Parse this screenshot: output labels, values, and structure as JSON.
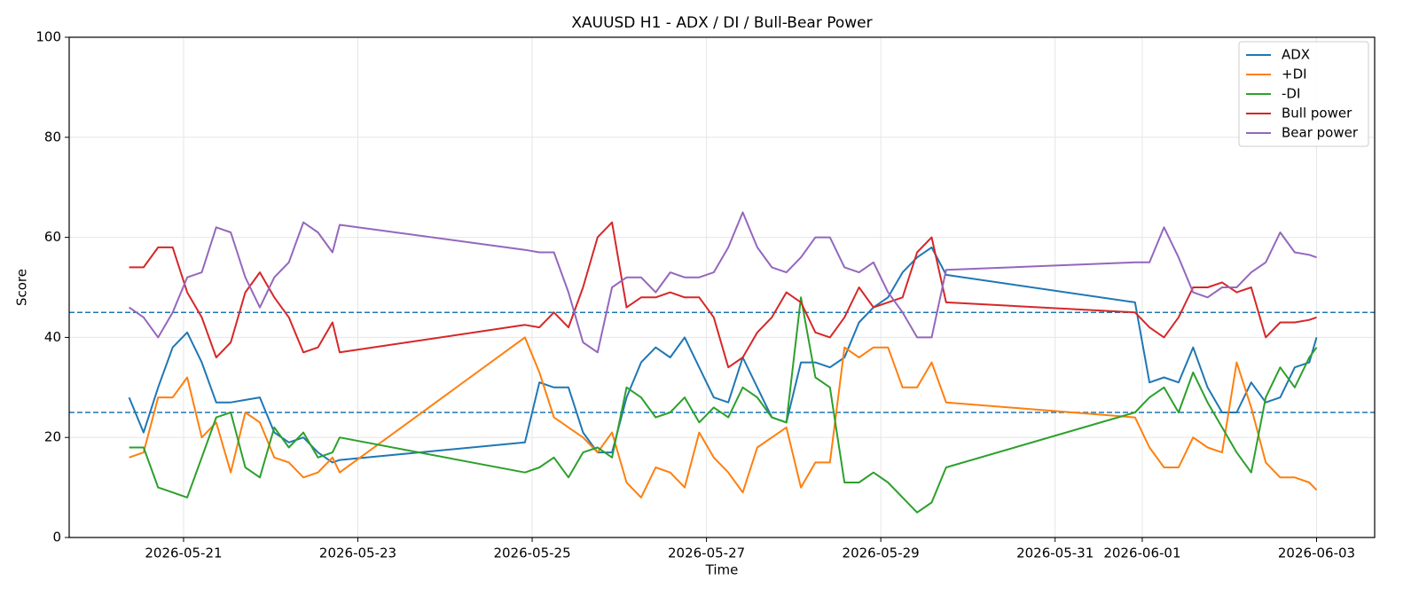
{
  "chart_data": {
    "type": "line",
    "title": "XAUUSD H1 - ADX / DI / Bull-Bear Power",
    "x_label": "Time",
    "y_label": "Score",
    "x": [
      "2026-05-20 09:00",
      "2026-05-20 13:00",
      "2026-05-20 17:00",
      "2026-05-20 21:00",
      "2026-05-21 01:00",
      "2026-05-21 05:00",
      "2026-05-21 09:00",
      "2026-05-21 13:00",
      "2026-05-21 17:00",
      "2026-05-21 21:00",
      "2026-05-22 01:00",
      "2026-05-22 05:00",
      "2026-05-22 09:00",
      "2026-05-22 13:00",
      "2026-05-22 17:00",
      "2026-05-22 19:00",
      "2026-05-24 22:00",
      "2026-05-25 02:00",
      "2026-05-25 06:00",
      "2026-05-25 10:00",
      "2026-05-25 14:00",
      "2026-05-25 18:00",
      "2026-05-25 22:00",
      "2026-05-26 02:00",
      "2026-05-26 06:00",
      "2026-05-26 10:00",
      "2026-05-26 14:00",
      "2026-05-26 18:00",
      "2026-05-26 22:00",
      "2026-05-27 02:00",
      "2026-05-27 06:00",
      "2026-05-27 10:00",
      "2026-05-27 14:00",
      "2026-05-27 18:00",
      "2026-05-27 22:00",
      "2026-05-28 02:00",
      "2026-05-28 06:00",
      "2026-05-28 10:00",
      "2026-05-28 14:00",
      "2026-05-28 18:00",
      "2026-05-28 22:00",
      "2026-05-29 02:00",
      "2026-05-29 06:00",
      "2026-05-29 10:00",
      "2026-05-29 14:00",
      "2026-05-29 18:00",
      "2026-05-31 22:00",
      "2026-06-01 02:00",
      "2026-06-01 06:00",
      "2026-06-01 10:00",
      "2026-06-01 14:00",
      "2026-06-01 18:00",
      "2026-06-01 22:00",
      "2026-06-02 02:00",
      "2026-06-02 06:00",
      "2026-06-02 10:00",
      "2026-06-02 14:00",
      "2026-06-02 18:00",
      "2026-06-02 22:00",
      "2026-06-03 00:00"
    ],
    "series": [
      {
        "name": "ADX",
        "color": "#1f77b4",
        "values": [
          28,
          21,
          30,
          38,
          41,
          35,
          27,
          27,
          27.5,
          28,
          21,
          19,
          20,
          17,
          15,
          15.5,
          19,
          31,
          30,
          30,
          21,
          17,
          17,
          28,
          35,
          38,
          36,
          40,
          34,
          28,
          27,
          36,
          30,
          24,
          23,
          35,
          35,
          34,
          36,
          43,
          46,
          48,
          53,
          56,
          58,
          52.5,
          47,
          31,
          32,
          31,
          38,
          30,
          25,
          25,
          31,
          27,
          28,
          34,
          35,
          40
        ]
      },
      {
        "name": "+DI",
        "color": "#ff7f0e",
        "values": [
          16,
          17,
          28,
          28,
          32,
          20,
          23,
          13,
          25,
          23,
          16,
          15,
          12,
          13,
          16,
          13,
          40,
          33,
          24,
          22,
          20,
          17,
          21,
          11,
          8,
          14,
          13,
          10,
          21,
          16,
          13,
          9,
          18,
          20,
          22,
          10,
          15,
          15,
          38,
          36,
          38,
          38,
          30,
          30,
          35,
          27,
          24,
          18,
          14,
          14,
          20,
          18,
          17,
          35,
          26,
          15,
          12,
          12,
          11,
          9.5
        ]
      },
      {
        "name": "-DI",
        "color": "#2ca02c",
        "values": [
          18,
          18,
          10,
          9,
          8,
          16,
          24,
          25,
          14,
          12,
          22,
          18,
          21,
          16,
          17,
          20,
          13,
          14,
          16,
          12,
          17,
          18,
          16,
          30,
          28,
          24,
          25,
          28,
          23,
          26,
          24,
          30,
          28,
          24,
          23,
          48,
          32,
          30,
          11,
          11,
          13,
          11,
          8,
          5,
          7,
          14,
          25,
          28,
          30,
          25,
          33,
          27,
          22,
          17,
          13,
          28,
          34,
          30,
          36,
          38
        ]
      },
      {
        "name": "Bull power",
        "color": "#d62728",
        "values": [
          54,
          54,
          58,
          58,
          49,
          44,
          36,
          39,
          49,
          53,
          48,
          44,
          37,
          38,
          43,
          37,
          42.5,
          42,
          45,
          42,
          50,
          60,
          63,
          46,
          48,
          48,
          49,
          48,
          48,
          44,
          34,
          36,
          41,
          44,
          49,
          47,
          41,
          40,
          44,
          50,
          46,
          47,
          48,
          57,
          60,
          47,
          45,
          42,
          40,
          44,
          50,
          50,
          51,
          49,
          50,
          40,
          43,
          43,
          43.5,
          44
        ]
      },
      {
        "name": "Bear power",
        "color": "#9467bd",
        "values": [
          46,
          44,
          40,
          45,
          52,
          53,
          62,
          61,
          52,
          46,
          52,
          55,
          63,
          61,
          57,
          62.5,
          57.5,
          57,
          57,
          49,
          39,
          37,
          50,
          52,
          52,
          49,
          53,
          52,
          52,
          53,
          58,
          65,
          58,
          54,
          53,
          56,
          60,
          60,
          54,
          53,
          55,
          49,
          45,
          40,
          40,
          53.5,
          55,
          55,
          62,
          56,
          49,
          48,
          50,
          50,
          53,
          55,
          61,
          57,
          56.5,
          56
        ]
      }
    ],
    "hlines": [
      45,
      25
    ],
    "hline_color": "#1f77b4",
    "xlim": [
      "2026-05-19 16:30",
      "2026-06-03 16:00"
    ],
    "xticks": [
      "2026-05-21",
      "2026-05-23",
      "2026-05-25",
      "2026-05-27",
      "2026-05-29",
      "2026-05-31",
      "2026-06-01",
      "2026-06-03"
    ],
    "ylim": [
      0,
      100
    ],
    "yticks": [
      0,
      20,
      40,
      60,
      80,
      100
    ],
    "grid": true,
    "legend": "upper right"
  }
}
